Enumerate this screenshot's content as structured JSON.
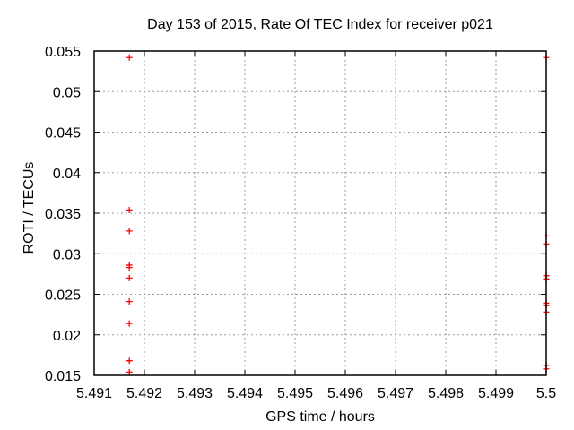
{
  "chart_data": {
    "type": "scatter",
    "title": "Day 153 of 2015, Rate Of TEC Index for receiver p021",
    "xlabel": "GPS time / hours",
    "ylabel": "ROTI / TECUs",
    "xlim": [
      5.491,
      5.5
    ],
    "ylim": [
      0.015,
      0.055
    ],
    "x_ticks": [
      5.491,
      5.492,
      5.493,
      5.494,
      5.495,
      5.496,
      5.497,
      5.498,
      5.499,
      5.5
    ],
    "x_tick_labels": [
      "5.491",
      "5.492",
      "5.493",
      "5.494",
      "5.495",
      "5.496",
      "5.497",
      "5.498",
      "5.499",
      "5.5"
    ],
    "y_ticks": [
      0.015,
      0.02,
      0.025,
      0.03,
      0.035,
      0.04,
      0.045,
      0.05,
      0.055
    ],
    "y_tick_labels": [
      "0.015",
      "0.02",
      "0.025",
      "0.03",
      "0.035",
      "0.04",
      "0.045",
      "0.05",
      "0.055"
    ],
    "grid": true,
    "legend": "none",
    "marker": "plus",
    "marker_color": "#ff0000",
    "series": [
      {
        "name": "ROTI",
        "points": [
          [
            5.4917,
            0.0542
          ],
          [
            5.4917,
            0.0354
          ],
          [
            5.4917,
            0.0328
          ],
          [
            5.4917,
            0.0286
          ],
          [
            5.4917,
            0.0283
          ],
          [
            5.4917,
            0.027
          ],
          [
            5.4917,
            0.0241
          ],
          [
            5.4917,
            0.0214
          ],
          [
            5.4917,
            0.0168
          ],
          [
            5.4917,
            0.0154
          ],
          [
            5.5,
            0.0542
          ],
          [
            5.5,
            0.0322
          ],
          [
            5.5,
            0.0312
          ],
          [
            5.5,
            0.0273
          ],
          [
            5.5,
            0.0269
          ],
          [
            5.5,
            0.0239
          ],
          [
            5.5,
            0.0236
          ],
          [
            5.5,
            0.0228
          ],
          [
            5.5,
            0.0162
          ],
          [
            5.5,
            0.0158
          ]
        ]
      }
    ]
  }
}
